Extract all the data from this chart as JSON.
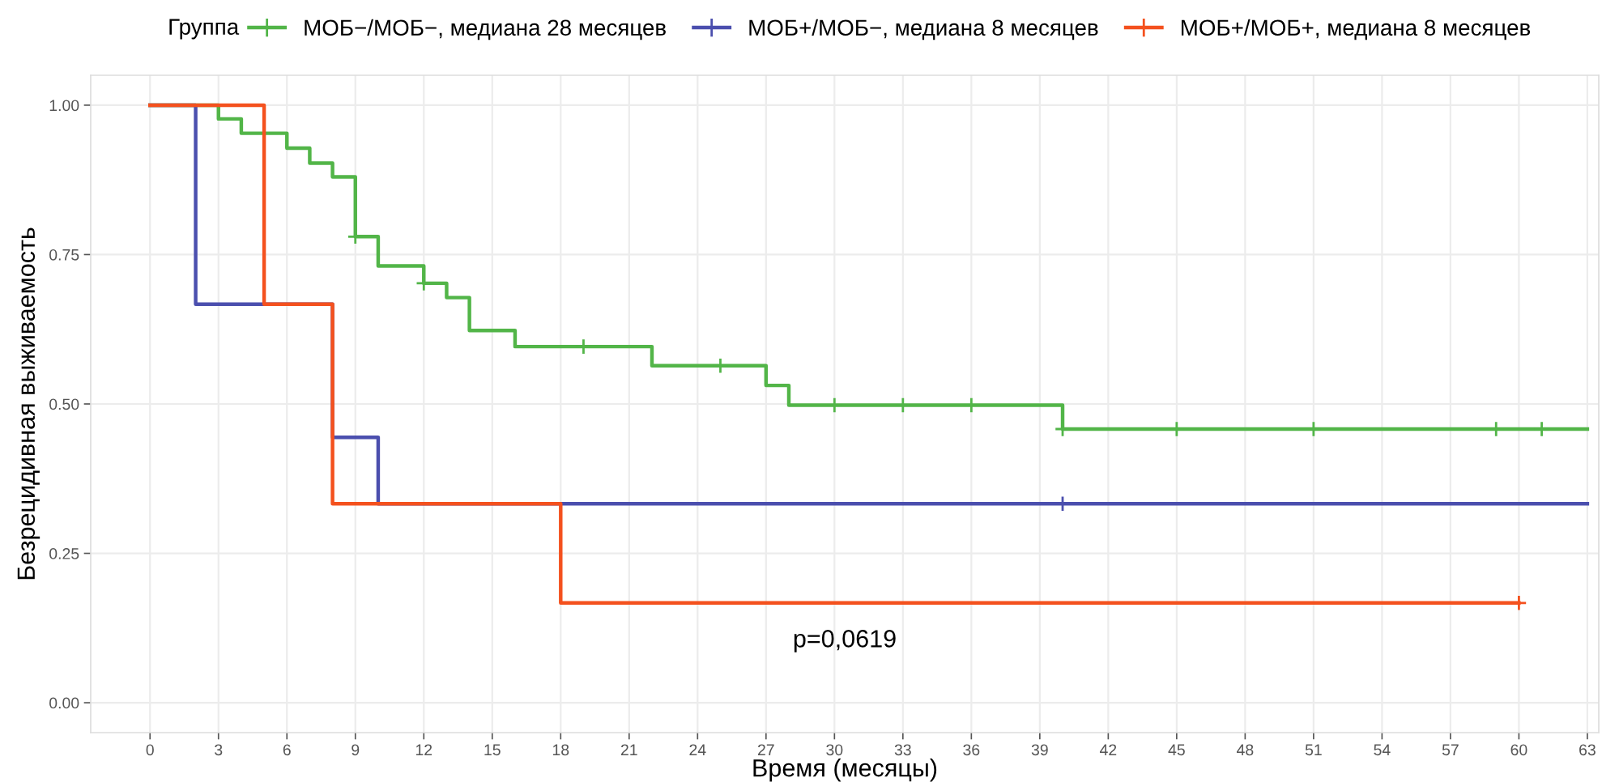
{
  "chart_data": {
    "type": "step",
    "xlabel": "Время (месяцы)",
    "ylabel": "Безрецидивная выживаемость",
    "legend_title": "Группа",
    "legend": "top",
    "grid": true,
    "line_style": "solid",
    "marker": "none",
    "xlim": [
      -2.6,
      63.5
    ],
    "xticks": [
      0,
      3,
      6,
      9,
      12,
      15,
      18,
      21,
      24,
      27,
      30,
      33,
      36,
      39,
      42,
      45,
      48,
      51,
      54,
      57,
      60,
      63
    ],
    "ylim": [
      -0.05,
      1.05
    ],
    "yticks": [
      {
        "value": 0,
        "label": "0.00"
      },
      {
        "value": 0.25,
        "label": "0.25"
      },
      {
        "value": 0.5,
        "label": "0.50"
      },
      {
        "value": 0.75,
        "label": "0.75"
      },
      {
        "value": 1,
        "label": "1.00"
      }
    ],
    "annotations": [
      "p=0,0619"
    ],
    "series": [
      {
        "name": "МОБ−/МОБ−, медиана 28 месяцев",
        "color": "#52b548",
        "x": [
          0,
          3,
          4,
          6,
          7,
          8,
          9,
          10,
          12,
          13,
          14,
          16,
          22,
          27,
          28,
          40,
          63
        ],
        "values": [
          1,
          0.977,
          0.953,
          0.928,
          0.903,
          0.88,
          0.78,
          0.731,
          0.702,
          0.678,
          0.623,
          0.596,
          0.564,
          0.531,
          0.498,
          0.458,
          0.458
        ]
      },
      {
        "name": "МОБ+/МОБ−, медиана 8 месяцев",
        "color": "#4b4fae",
        "x": [
          0,
          2,
          8,
          10,
          63
        ],
        "values": [
          1,
          0.667,
          0.444,
          0.333,
          0.333
        ]
      },
      {
        "name": "МОБ+/МОБ+, медиана 8 месяцев",
        "color": "#f4511e",
        "x": [
          0,
          5,
          8,
          18,
          60
        ],
        "values": [
          1,
          0.667,
          0.333,
          0.167,
          0.167
        ]
      },
      {
        "type": "scatter",
        "marker": "cross",
        "color": "#52b548",
        "x": [
          9,
          12,
          19,
          25,
          30,
          33,
          36,
          40,
          45,
          51,
          59,
          61
        ],
        "values": [
          0.78,
          0.702,
          0.596,
          0.564,
          0.498,
          0.498,
          0.498,
          0.458,
          0.458,
          0.458,
          0.458,
          0.458
        ]
      },
      {
        "type": "scatter",
        "marker": "cross",
        "color": "#4b4fae",
        "x": [
          40
        ],
        "values": [
          0.333
        ]
      },
      {
        "type": "scatter",
        "marker": "cross",
        "color": "#f4511e",
        "x": [
          60
        ],
        "values": [
          0.167
        ]
      }
    ]
  }
}
